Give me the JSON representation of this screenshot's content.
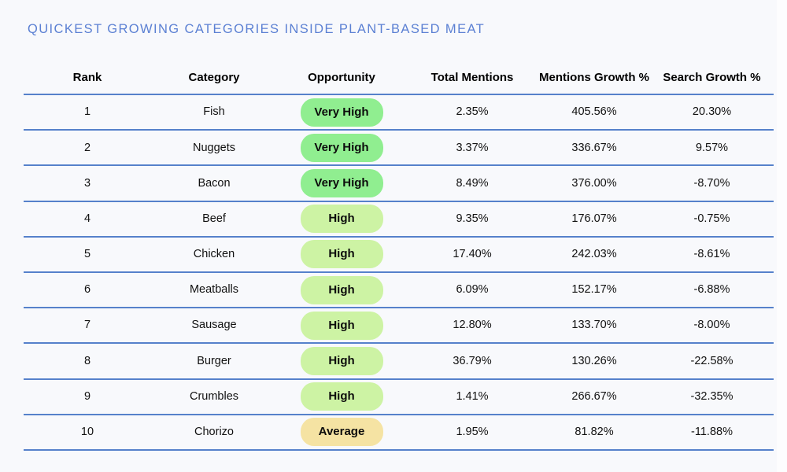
{
  "title": "QUICKEST GROWING CATEGORIES INSIDE PLANT-BASED MEAT",
  "chart_data": {
    "type": "table",
    "title": "QUICKEST GROWING CATEGORIES INSIDE PLANT-BASED MEAT",
    "columns": [
      "Rank",
      "Category",
      "Opportunity",
      "Total Mentions",
      "Mentions Growth %",
      "Search Growth %"
    ],
    "rows": [
      {
        "rank": "1",
        "category": "Fish",
        "opportunity": "Very High",
        "total_mentions": "2.35%",
        "mentions_growth": "405.56%",
        "search_growth": "20.30%"
      },
      {
        "rank": "2",
        "category": "Nuggets",
        "opportunity": "Very High",
        "total_mentions": "3.37%",
        "mentions_growth": "336.67%",
        "search_growth": "9.57%"
      },
      {
        "rank": "3",
        "category": "Bacon",
        "opportunity": "Very High",
        "total_mentions": "8.49%",
        "mentions_growth": "376.00%",
        "search_growth": "-8.70%"
      },
      {
        "rank": "4",
        "category": "Beef",
        "opportunity": "High",
        "total_mentions": "9.35%",
        "mentions_growth": "176.07%",
        "search_growth": "-0.75%"
      },
      {
        "rank": "5",
        "category": "Chicken",
        "opportunity": "High",
        "total_mentions": "17.40%",
        "mentions_growth": "242.03%",
        "search_growth": "-8.61%"
      },
      {
        "rank": "6",
        "category": "Meatballs",
        "opportunity": "High",
        "total_mentions": "6.09%",
        "mentions_growth": "152.17%",
        "search_growth": "-6.88%"
      },
      {
        "rank": "7",
        "category": "Sausage",
        "opportunity": "High",
        "total_mentions": "12.80%",
        "mentions_growth": "133.70%",
        "search_growth": "-8.00%"
      },
      {
        "rank": "8",
        "category": "Burger",
        "opportunity": "High",
        "total_mentions": "36.79%",
        "mentions_growth": "130.26%",
        "search_growth": "-22.58%"
      },
      {
        "rank": "9",
        "category": "Crumbles",
        "opportunity": "High",
        "total_mentions": "1.41%",
        "mentions_growth": "266.67%",
        "search_growth": "-32.35%"
      },
      {
        "rank": "10",
        "category": "Chorizo",
        "opportunity": "Average",
        "total_mentions": "1.95%",
        "mentions_growth": "81.82%",
        "search_growth": "-11.88%"
      }
    ],
    "opportunity_levels": [
      "Very High",
      "High",
      "Average"
    ],
    "layout": {
      "grid": "horizontal-rules-only",
      "legend_position": "none"
    }
  },
  "colors": {
    "page_bg": "#f8f9fc",
    "title_color": "#5b80d3",
    "line_color": "#5681cb",
    "text_color": "#111111",
    "badge_very_high": "#90ee90",
    "badge_high": "#cdf3a4",
    "badge_average": "#f5e3a3"
  }
}
